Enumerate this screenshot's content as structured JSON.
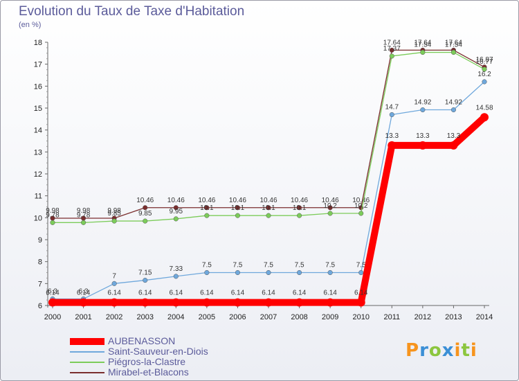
{
  "chart_data": {
    "type": "line",
    "title": "Evolution du Taux de Taxe d'Habitation",
    "subtitle": "(en %)",
    "x": [
      "2000",
      "2001",
      "2002",
      "2003",
      "2004",
      "2005",
      "2006",
      "2007",
      "2008",
      "2009",
      "2010",
      "2011",
      "2012",
      "2013",
      "2014"
    ],
    "y_ticks": [
      "6",
      "7",
      "8",
      "9",
      "10",
      "11",
      "12",
      "13",
      "14",
      "15",
      "16",
      "17",
      "18"
    ],
    "ylim": [
      6,
      18
    ],
    "grid": false,
    "legend_position": "bottom-left",
    "series": [
      {
        "name": "AUBENASSON",
        "color": "#ff0000",
        "values": [
          6.14,
          6.14,
          6.14,
          6.14,
          6.14,
          6.14,
          6.14,
          6.14,
          6.14,
          6.14,
          6.14,
          13.3,
          13.3,
          13.3,
          14.58
        ],
        "labels": [
          "6.14",
          "6.14",
          "6.14",
          "6.14",
          "6.14",
          "6.14",
          "6.14",
          "6.14",
          "6.14",
          "6.14",
          "6.14",
          "13.3",
          "13.3",
          "13.3",
          "14.58"
        ]
      },
      {
        "name": "Saint-Sauveur-en-Diois",
        "color": "#6fa8dc",
        "values": [
          6.3,
          6.3,
          7.0,
          7.15,
          7.33,
          7.5,
          7.5,
          7.5,
          7.5,
          7.5,
          7.5,
          14.7,
          14.92,
          14.92,
          16.2
        ],
        "labels": [
          "6.3",
          "6.3",
          "7",
          "7.15",
          "7.33",
          "7.5",
          "7.5",
          "7.5",
          "7.5",
          "7.5",
          "7.5",
          "14.7",
          "14.92",
          "14.92",
          "16.2"
        ]
      },
      {
        "name": "Piégros-la-Clastre",
        "color": "#7ccc5a",
        "values": [
          9.78,
          9.78,
          9.85,
          9.85,
          9.95,
          10.1,
          10.1,
          10.1,
          10.1,
          10.2,
          10.2,
          17.37,
          17.54,
          17.54,
          16.77
        ],
        "labels": [
          "9.78",
          "9.78",
          "9.85",
          "9.85",
          "9.95",
          "10.1",
          "10.1",
          "10.1",
          "10.1",
          "10.2",
          "10.2",
          "17.37",
          "17.54",
          "17.54",
          "16.77"
        ]
      },
      {
        "name": "Mirabel-et-Blacons",
        "color": "#7a2e2e",
        "values": [
          9.98,
          9.98,
          9.98,
          10.46,
          10.46,
          10.46,
          10.46,
          10.46,
          10.46,
          10.46,
          10.46,
          17.64,
          17.64,
          17.64,
          16.87
        ],
        "labels": [
          "9.98",
          "9.98",
          "9.98",
          "10.46",
          "10.46",
          "10.46",
          "10.46",
          "10.46",
          "10.46",
          "10.46",
          "10.46",
          "17.64",
          "17.64",
          "17.64",
          "16.87"
        ]
      }
    ]
  },
  "logo": {
    "letters": [
      "P",
      "r",
      "o",
      "x",
      "i",
      "t",
      "i"
    ],
    "colors": [
      "#f7941d",
      "#3b8fd6",
      "#8cc63f",
      "#3b8fd6",
      "#f7941d",
      "#8cc63f",
      "#f7941d"
    ]
  }
}
